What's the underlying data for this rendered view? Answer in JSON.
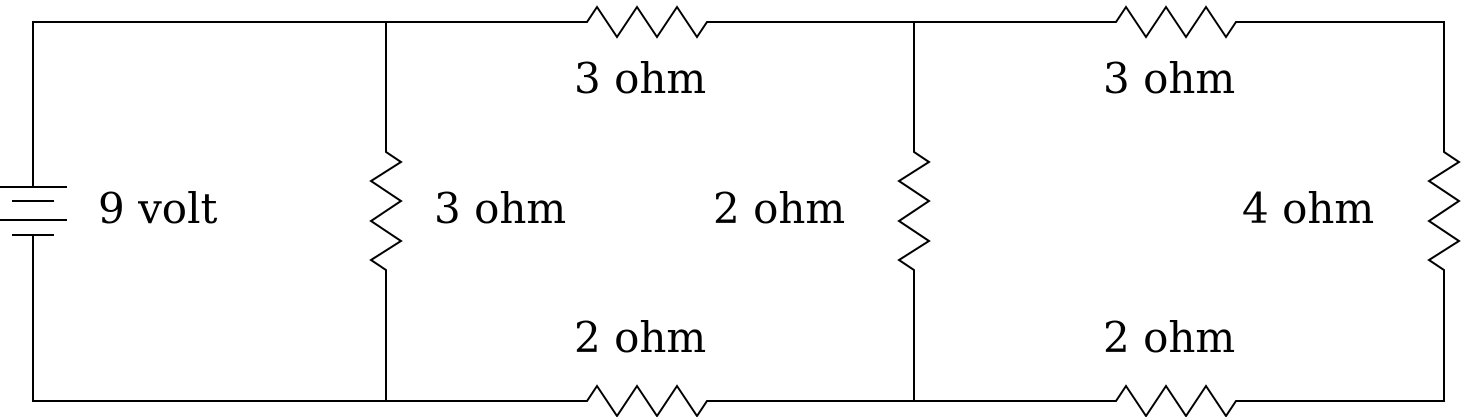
{
  "battery": {
    "label": "9 volt"
  },
  "resistors": {
    "left_vertical": "3 ohm",
    "top_left": "3 ohm",
    "bottom_left": "2 ohm",
    "middle_vertical": "2 ohm",
    "top_right": "3 ohm",
    "bottom_right": "2 ohm",
    "right_vertical": "4 ohm"
  }
}
